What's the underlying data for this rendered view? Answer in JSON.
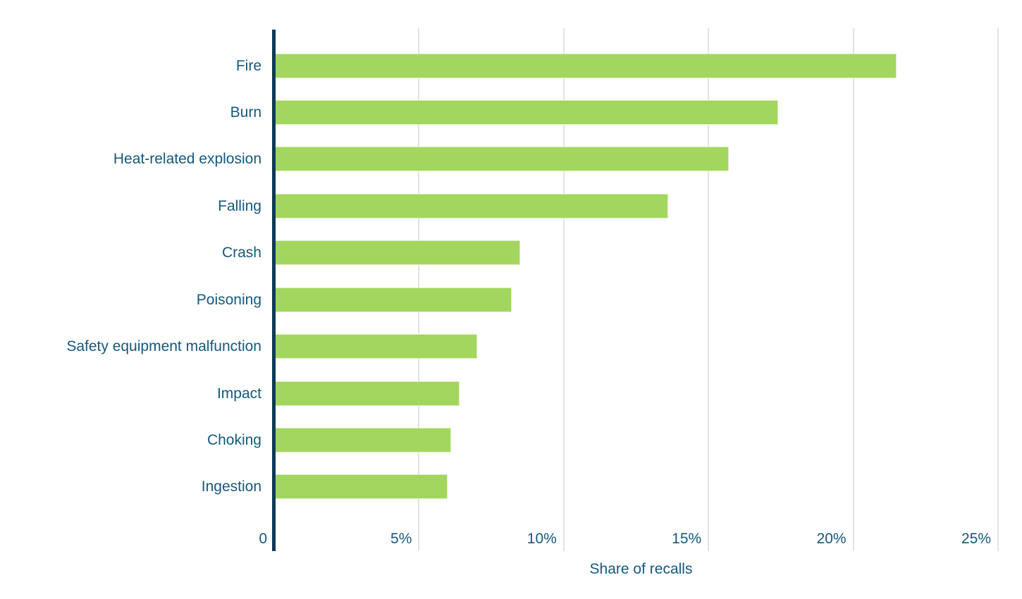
{
  "chart_data": {
    "type": "bar",
    "orientation": "horizontal",
    "title": "",
    "xlabel": "Share of recalls",
    "ylabel": "",
    "unit": "%",
    "categories": [
      "Fire",
      "Burn",
      "Heat-related explosion",
      "Falling",
      "Crash",
      "Poisoning",
      "Safety equipment malfunction",
      "Impact",
      "Choking",
      "Ingestion"
    ],
    "values": [
      21.5,
      17.4,
      15.7,
      13.6,
      8.5,
      8.2,
      7.0,
      6.4,
      6.1,
      6.0
    ],
    "x_ticks": [
      "0",
      "5%",
      "10%",
      "15%",
      "20%",
      "25%"
    ],
    "x_tick_values": [
      0,
      5,
      10,
      15,
      20,
      25
    ],
    "xlim": [
      0,
      25.3
    ],
    "grid": "vertical",
    "legend": "none",
    "colors": {
      "bar_fill": "#a3d65f",
      "bar_border": "#ddefbf",
      "gridline": "#e3e3e3",
      "axis_line": "#0e3a56",
      "text": "#14587e",
      "background": "#ffffff"
    }
  }
}
